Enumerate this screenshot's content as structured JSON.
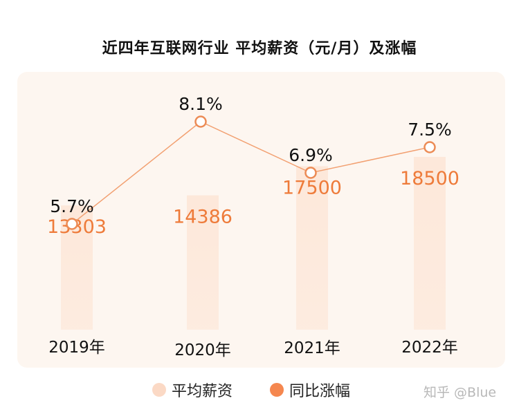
{
  "title": "近四年互联网行业 平均薪资（元/月）及涨幅",
  "colors": {
    "bar": "#fde8da",
    "line": "#f2a071",
    "marker_stroke": "#ec8b55",
    "bar_label": "#ee7b3a",
    "pct_label": "#111111",
    "legend_bar": "#fbd9c5",
    "legend_line": "#f5874f"
  },
  "legend": {
    "bar_label": "平均薪资",
    "line_label": "同比涨幅"
  },
  "watermark": "知乎 @Blue",
  "chart_data": {
    "type": "bar",
    "categories": [
      "2019年",
      "2020年",
      "2021年",
      "2022年"
    ],
    "series": [
      {
        "name": "平均薪资",
        "type": "bar",
        "values": [
          13303,
          14386,
          17500,
          18500
        ],
        "labels": [
          "13303",
          "14386",
          "17500",
          "18500"
        ]
      },
      {
        "name": "同比涨幅",
        "type": "line",
        "values": [
          5.7,
          8.1,
          6.9,
          7.5
        ],
        "labels": [
          "5.7%",
          "8.1%",
          "6.9%",
          "7.5%"
        ]
      }
    ]
  }
}
